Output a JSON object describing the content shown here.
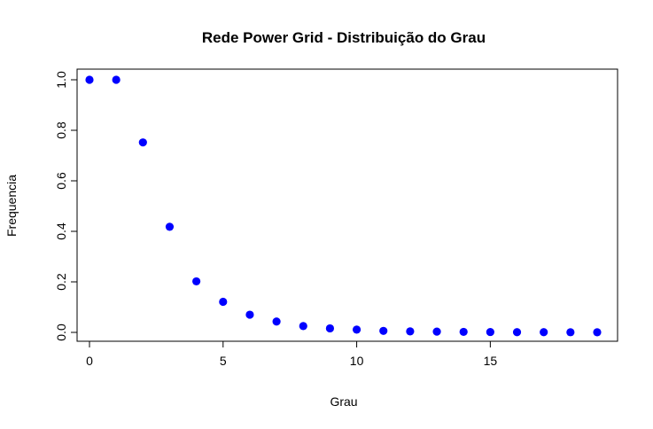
{
  "chart_data": {
    "type": "scatter",
    "title": "Rede Power Grid - Distribuição do Grau",
    "xlabel": "Grau",
    "ylabel": "Frequencia",
    "xlim": [
      0,
      19
    ],
    "ylim": [
      0,
      1
    ],
    "x_ticks": [
      "0",
      "5",
      "10",
      "15"
    ],
    "y_ticks": [
      "0.0",
      "0.2",
      "0.4",
      "0.6",
      "0.8",
      "1.0"
    ],
    "grid": false,
    "point_color": "#0000ff",
    "x": [
      0,
      1,
      2,
      3,
      4,
      5,
      6,
      7,
      8,
      9,
      10,
      11,
      12,
      13,
      14,
      15,
      16,
      17,
      18,
      19
    ],
    "y": [
      1.0,
      1.0,
      0.752,
      0.418,
      0.202,
      0.121,
      0.07,
      0.043,
      0.025,
      0.016,
      0.011,
      0.006,
      0.004,
      0.003,
      0.002,
      0.0015,
      0.001,
      0.0008,
      0.0006,
      0.0005
    ]
  }
}
